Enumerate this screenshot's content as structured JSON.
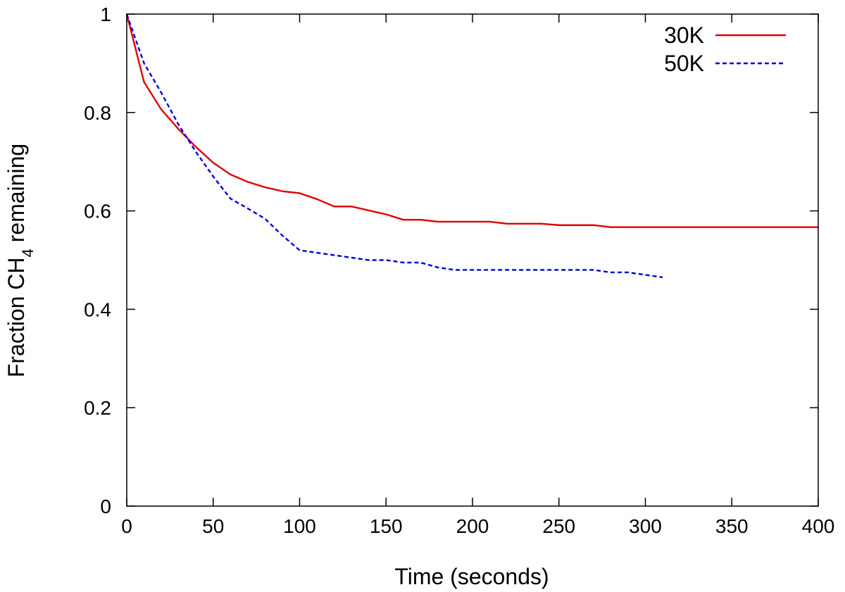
{
  "chart_data": {
    "type": "line",
    "title": "",
    "xlabel": "Time (seconds)",
    "ylabel_prefix": "Fraction CH",
    "ylabel_subscript": "4",
    "ylabel_suffix": " remaining",
    "xlim": [
      0,
      400
    ],
    "ylim": [
      0,
      1
    ],
    "x_ticks": [
      0,
      50,
      100,
      150,
      200,
      250,
      300,
      350,
      400
    ],
    "y_ticks": [
      0,
      0.2,
      0.4,
      0.6,
      0.8,
      1
    ],
    "x_tick_labels": [
      "0",
      "50",
      "100",
      "150",
      "200",
      "250",
      "300",
      "350",
      "400"
    ],
    "y_tick_labels": [
      "0",
      "0.2",
      "0.4",
      "0.6",
      "0.8",
      "1"
    ],
    "grid": false,
    "legend_position": "top-right",
    "series": [
      {
        "name": "30K",
        "color": "#e00000",
        "dash": "solid",
        "points": [
          [
            0,
            1
          ],
          [
            10,
            0.862
          ],
          [
            20,
            0.806
          ],
          [
            30,
            0.766
          ],
          [
            40,
            0.73
          ],
          [
            50,
            0.698
          ],
          [
            60,
            0.674
          ],
          [
            70,
            0.659
          ],
          [
            80,
            0.648
          ],
          [
            90,
            0.64
          ],
          [
            100,
            0.636
          ],
          [
            110,
            0.624
          ],
          [
            120,
            0.609
          ],
          [
            130,
            0.609
          ],
          [
            140,
            0.601
          ],
          [
            150,
            0.593
          ],
          [
            160,
            0.582
          ],
          [
            170,
            0.582
          ],
          [
            180,
            0.578
          ],
          [
            190,
            0.578
          ],
          [
            200,
            0.578
          ],
          [
            210,
            0.578
          ],
          [
            220,
            0.574
          ],
          [
            230,
            0.574
          ],
          [
            240,
            0.574
          ],
          [
            250,
            0.571
          ],
          [
            260,
            0.571
          ],
          [
            270,
            0.571
          ],
          [
            280,
            0.567
          ],
          [
            290,
            0.567
          ],
          [
            300,
            0.567
          ],
          [
            310,
            0.567
          ],
          [
            320,
            0.567
          ],
          [
            330,
            0.567
          ],
          [
            340,
            0.567
          ],
          [
            350,
            0.567
          ],
          [
            360,
            0.567
          ],
          [
            370,
            0.567
          ],
          [
            380,
            0.567
          ],
          [
            390,
            0.567
          ],
          [
            400,
            0.567
          ]
        ]
      },
      {
        "name": "50K",
        "color": "#0000e0",
        "dash": "dashed",
        "points": [
          [
            0,
            1
          ],
          [
            10,
            0.9
          ],
          [
            20,
            0.84
          ],
          [
            30,
            0.775
          ],
          [
            40,
            0.72
          ],
          [
            50,
            0.67
          ],
          [
            60,
            0.625
          ],
          [
            70,
            0.605
          ],
          [
            80,
            0.584
          ],
          [
            90,
            0.55
          ],
          [
            100,
            0.52
          ],
          [
            110,
            0.515
          ],
          [
            120,
            0.51
          ],
          [
            130,
            0.505
          ],
          [
            140,
            0.5
          ],
          [
            150,
            0.5
          ],
          [
            160,
            0.495
          ],
          [
            170,
            0.495
          ],
          [
            180,
            0.485
          ],
          [
            190,
            0.48
          ],
          [
            200,
            0.48
          ],
          [
            210,
            0.48
          ],
          [
            220,
            0.48
          ],
          [
            230,
            0.48
          ],
          [
            240,
            0.48
          ],
          [
            250,
            0.48
          ],
          [
            260,
            0.48
          ],
          [
            270,
            0.48
          ],
          [
            280,
            0.475
          ],
          [
            290,
            0.475
          ],
          [
            300,
            0.47
          ],
          [
            310,
            0.465
          ]
        ]
      }
    ]
  }
}
